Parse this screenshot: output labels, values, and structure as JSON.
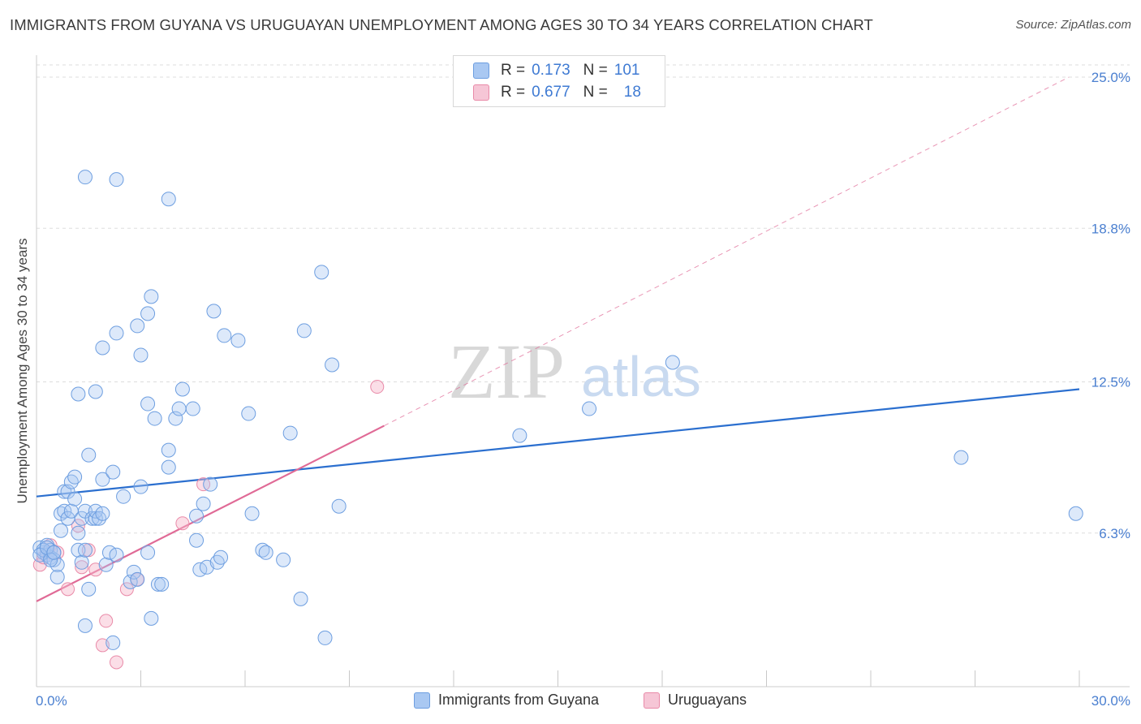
{
  "header": {
    "title": "IMMIGRANTS FROM GUYANA VS URUGUAYAN UNEMPLOYMENT AMONG AGES 30 TO 34 YEARS CORRELATION CHART",
    "source": "Source: ZipAtlas.com"
  },
  "watermark": {
    "zip": "ZIP",
    "atlas": "atlas"
  },
  "legend": {
    "rows": [
      {
        "r_label": "R =",
        "r_value": "0.173",
        "n_label": "N =",
        "n_value": "101"
      },
      {
        "r_label": "R =",
        "r_value": "0.677",
        "n_label": "N =",
        "n_value": "18"
      }
    ]
  },
  "bottom_legend": {
    "series_a": "Immigrants from Guyana",
    "series_b": "Uruguayans"
  },
  "colors": {
    "blue_fill": "#a9c8f2",
    "blue_stroke": "#6d9ee0",
    "blue_line": "#2b6fcf",
    "pink_fill": "#f6b6ca",
    "pink_stroke": "#e98aa8",
    "pink_line": "#e06a96",
    "grid": "#dddddd",
    "axis_text": "#4a7fd0"
  },
  "chart_data": {
    "type": "scatter",
    "title": "IMMIGRANTS FROM GUYANA VS URUGUAYAN UNEMPLOYMENT AMONG AGES 30 TO 34 YEARS CORRELATION CHART",
    "xlabel": "",
    "ylabel": "Unemployment Among Ages 30 to 34 years",
    "xlim": [
      0,
      30
    ],
    "ylim": [
      0,
      25.5
    ],
    "x_tick_labels": [
      "0.0%",
      "30.0%"
    ],
    "y_ticks": [
      6.3,
      12.5,
      18.8,
      25.0
    ],
    "y_tick_labels": [
      "6.3%",
      "12.5%",
      "18.8%",
      "25.0%"
    ],
    "grid": true,
    "series": [
      {
        "name": "Immigrants from Guyana",
        "r": 0.173,
        "n": 101,
        "trend": {
          "x": [
            0,
            30
          ],
          "y": [
            7.8,
            12.2
          ],
          "dashed_extension": false
        },
        "points": [
          [
            0.1,
            5.7
          ],
          [
            0.2,
            5.5
          ],
          [
            0.3,
            5.8
          ],
          [
            0.3,
            5.4
          ],
          [
            0.4,
            5.6
          ],
          [
            0.4,
            5.3
          ],
          [
            0.5,
            5.2
          ],
          [
            0.2,
            5.6
          ],
          [
            0.1,
            5.4
          ],
          [
            0.5,
            5.5
          ],
          [
            0.6,
            4.5
          ],
          [
            0.6,
            5.0
          ],
          [
            0.7,
            6.4
          ],
          [
            0.7,
            7.1
          ],
          [
            0.8,
            8.0
          ],
          [
            0.8,
            7.2
          ],
          [
            0.9,
            6.9
          ],
          [
            0.9,
            8.0
          ],
          [
            1.0,
            7.2
          ],
          [
            1.0,
            8.4
          ],
          [
            1.1,
            7.7
          ],
          [
            1.1,
            8.6
          ],
          [
            1.2,
            6.3
          ],
          [
            1.2,
            5.6
          ],
          [
            1.3,
            5.1
          ],
          [
            1.3,
            6.9
          ],
          [
            1.4,
            7.2
          ],
          [
            1.4,
            5.6
          ],
          [
            1.5,
            4.0
          ],
          [
            1.5,
            9.5
          ],
          [
            1.6,
            6.9
          ],
          [
            1.7,
            6.9
          ],
          [
            1.7,
            7.2
          ],
          [
            1.8,
            6.9
          ],
          [
            1.9,
            7.1
          ],
          [
            1.9,
            8.5
          ],
          [
            2.0,
            5.0
          ],
          [
            2.1,
            5.5
          ],
          [
            2.2,
            8.8
          ],
          [
            2.3,
            5.4
          ],
          [
            2.5,
            7.8
          ],
          [
            2.7,
            4.3
          ],
          [
            2.8,
            4.7
          ],
          [
            2.9,
            4.4
          ],
          [
            3.0,
            8.2
          ],
          [
            3.2,
            5.5
          ],
          [
            3.3,
            2.8
          ],
          [
            3.4,
            11.0
          ],
          [
            3.5,
            4.2
          ],
          [
            3.6,
            4.2
          ],
          [
            3.8,
            9.0
          ],
          [
            3.8,
            9.7
          ],
          [
            4.0,
            11.0
          ],
          [
            4.1,
            11.4
          ],
          [
            4.2,
            12.2
          ],
          [
            4.5,
            11.4
          ],
          [
            4.6,
            6.0
          ],
          [
            4.6,
            7.0
          ],
          [
            4.7,
            4.8
          ],
          [
            4.8,
            7.5
          ],
          [
            4.9,
            4.9
          ],
          [
            5.0,
            8.3
          ],
          [
            5.1,
            15.4
          ],
          [
            5.2,
            5.1
          ],
          [
            5.3,
            5.3
          ],
          [
            5.4,
            14.4
          ],
          [
            5.8,
            14.2
          ],
          [
            6.1,
            11.2
          ],
          [
            6.2,
            7.1
          ],
          [
            6.5,
            5.6
          ],
          [
            6.6,
            5.5
          ],
          [
            7.1,
            5.2
          ],
          [
            7.3,
            10.4
          ],
          [
            7.6,
            3.6
          ],
          [
            7.7,
            14.6
          ],
          [
            8.2,
            17.0
          ],
          [
            8.3,
            2.0
          ],
          [
            8.5,
            13.2
          ],
          [
            8.7,
            7.4
          ],
          [
            1.4,
            20.9
          ],
          [
            2.3,
            20.8
          ],
          [
            3.8,
            20.0
          ],
          [
            3.3,
            16.0
          ],
          [
            3.2,
            15.3
          ],
          [
            2.9,
            14.8
          ],
          [
            2.3,
            14.5
          ],
          [
            1.9,
            13.9
          ],
          [
            3.0,
            13.6
          ],
          [
            1.7,
            12.1
          ],
          [
            1.2,
            12.0
          ],
          [
            3.2,
            11.6
          ],
          [
            1.4,
            2.5
          ],
          [
            2.2,
            1.8
          ],
          [
            13.9,
            10.3
          ],
          [
            15.9,
            11.4
          ],
          [
            18.3,
            13.3
          ],
          [
            26.6,
            9.4
          ],
          [
            29.9,
            7.1
          ],
          [
            0.3,
            5.7
          ],
          [
            0.4,
            5.2
          ],
          [
            0.5,
            5.5
          ]
        ]
      },
      {
        "name": "Uruguayans",
        "r": 0.677,
        "n": 18,
        "trend": {
          "x": [
            0,
            10
          ],
          "y": [
            3.5,
            10.7
          ],
          "dashed_to": [
            29.7,
            25.0
          ]
        },
        "points": [
          [
            0.1,
            5.0
          ],
          [
            0.2,
            5.3
          ],
          [
            0.3,
            5.5
          ],
          [
            0.4,
            5.8
          ],
          [
            0.6,
            5.5
          ],
          [
            0.9,
            4.0
          ],
          [
            1.2,
            6.6
          ],
          [
            1.3,
            4.9
          ],
          [
            1.5,
            5.6
          ],
          [
            1.7,
            4.8
          ],
          [
            2.0,
            2.7
          ],
          [
            1.9,
            1.7
          ],
          [
            2.3,
            1.0
          ],
          [
            2.6,
            4.0
          ],
          [
            2.9,
            4.4
          ],
          [
            4.2,
            6.7
          ],
          [
            4.8,
            8.3
          ],
          [
            9.8,
            12.3
          ]
        ]
      }
    ]
  }
}
